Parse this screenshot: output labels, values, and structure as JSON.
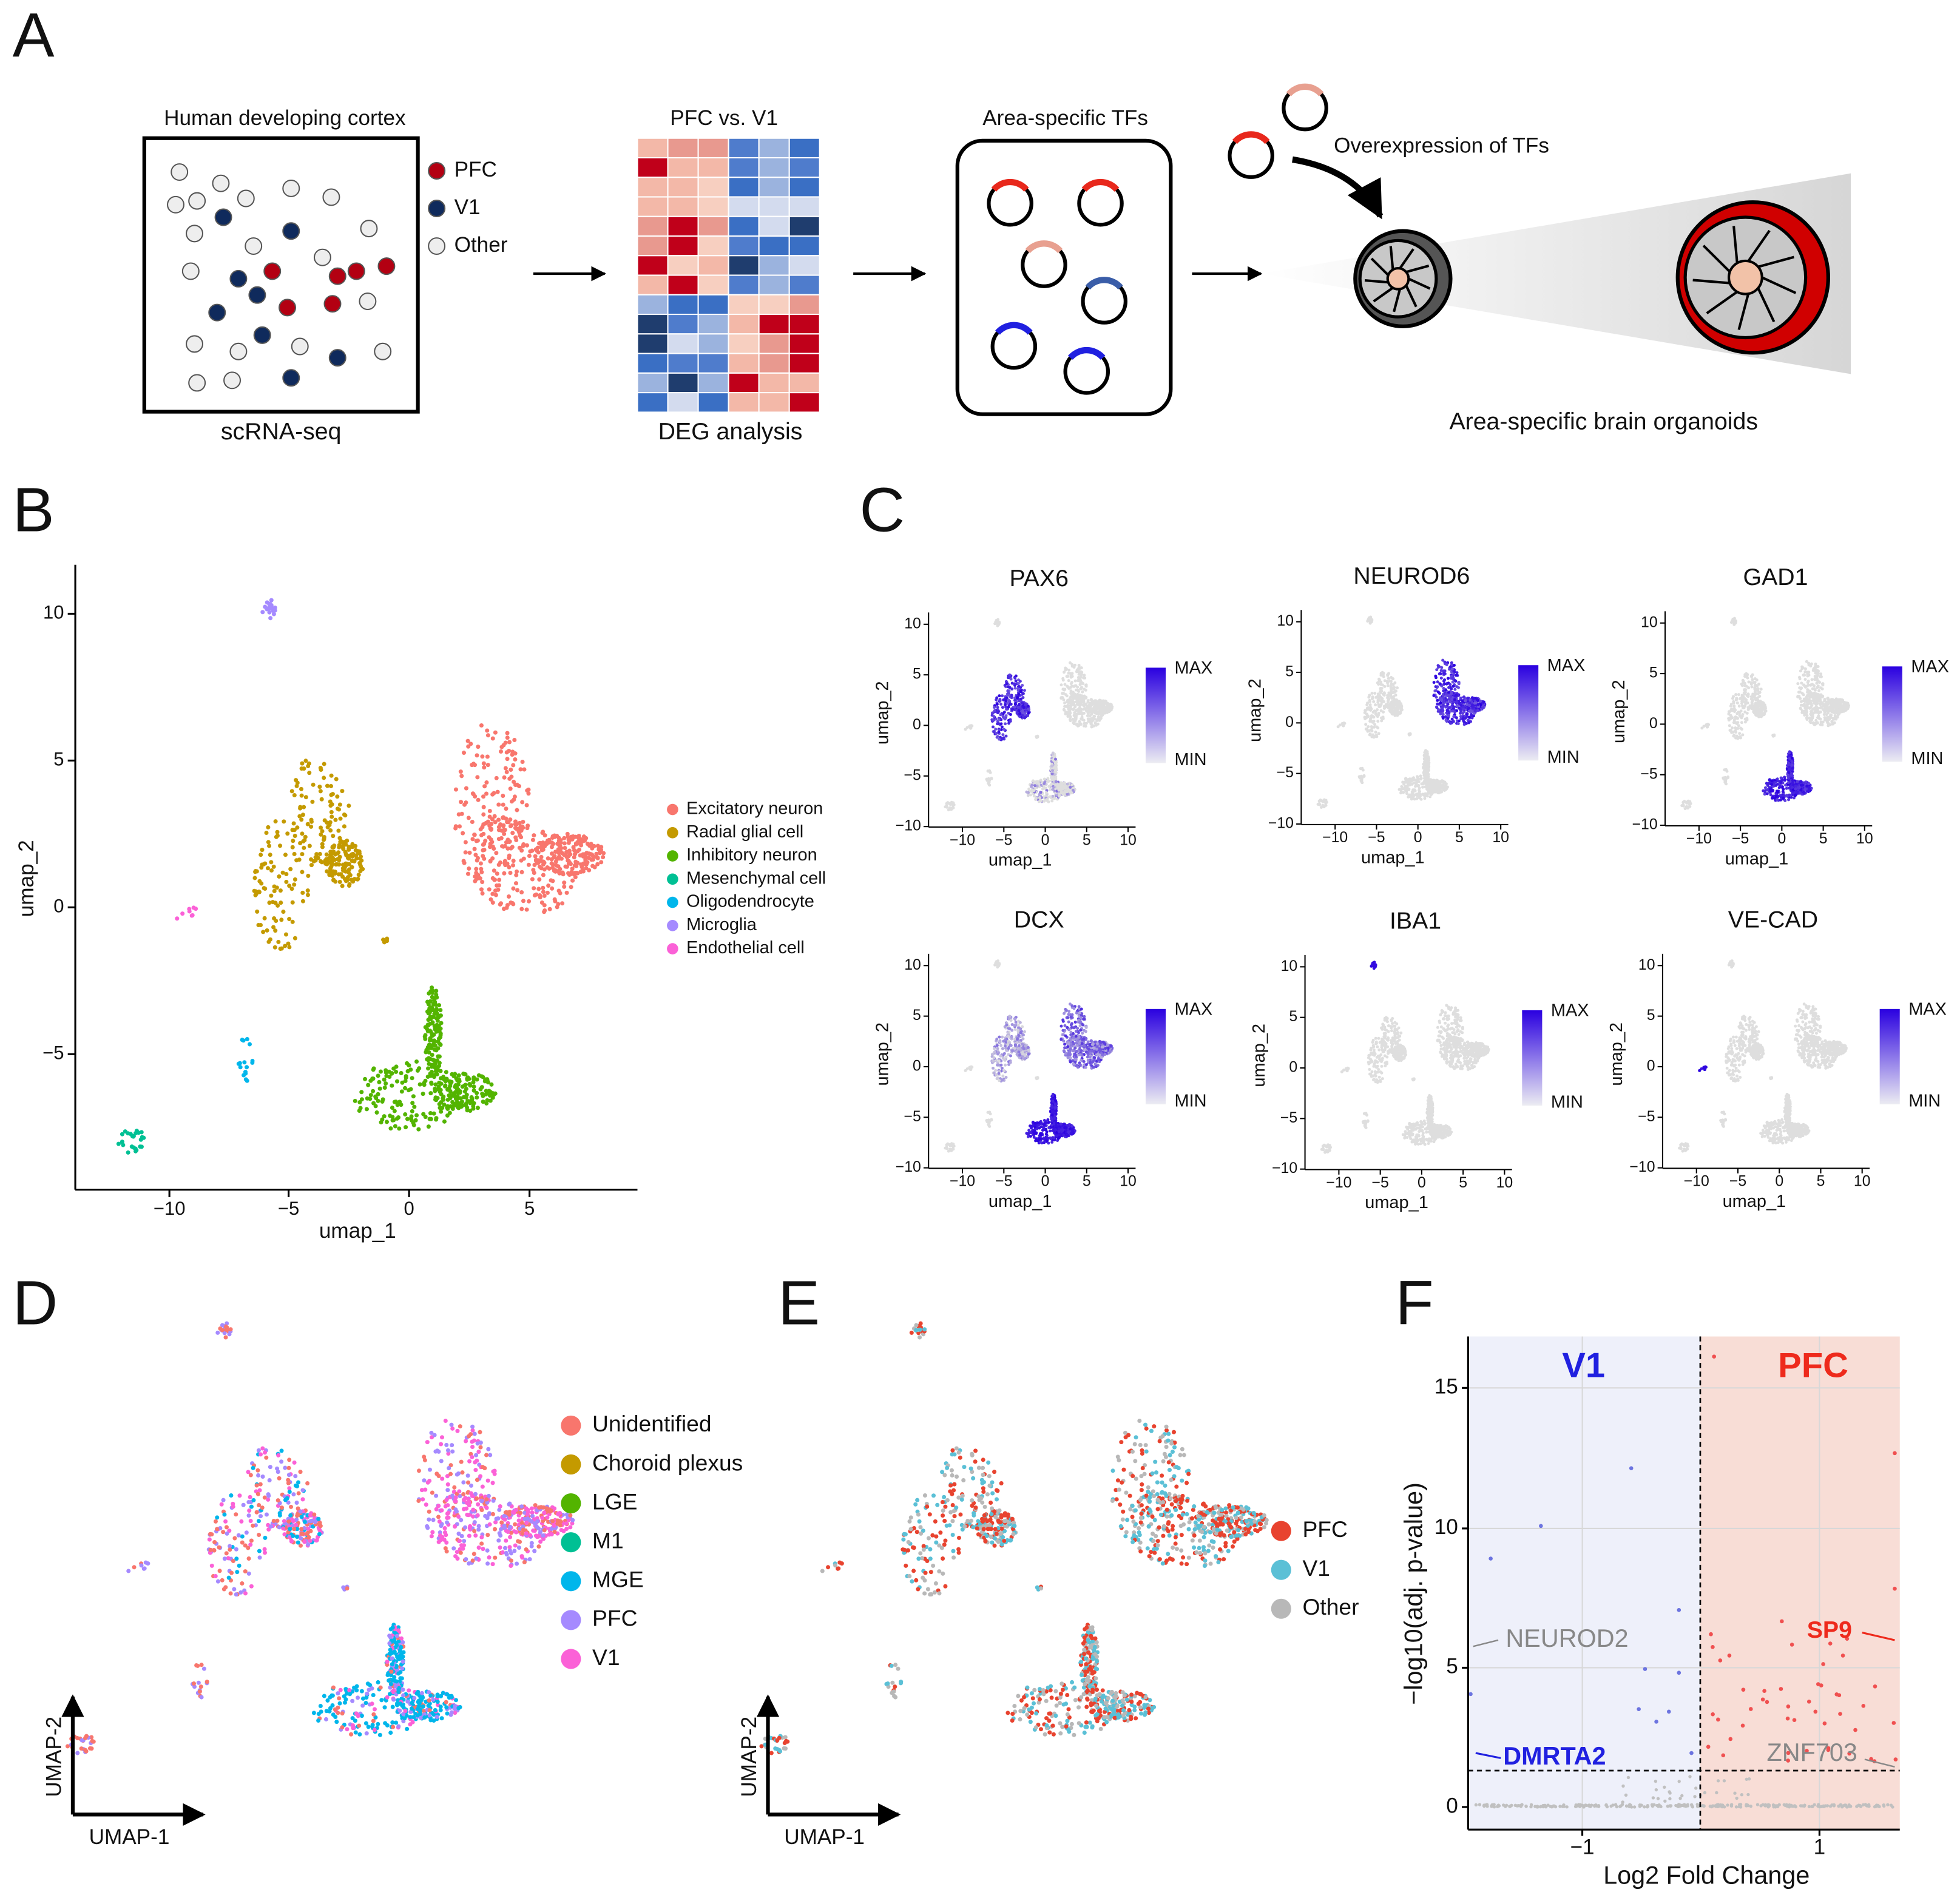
{
  "panels": {
    "A": {
      "letter": "A",
      "cortex_title": "Human developing cortex",
      "cortex_caption": "scRNA-seq",
      "legend": [
        "PFC",
        "V1",
        "Other"
      ],
      "heatmap_title": "PFC vs. V1",
      "heatmap_caption": "DEG analysis",
      "tfs_title": "Area-specific TFs",
      "overexpression": "Overexpression of TFs",
      "organoid_caption": "Area-specific brain organoids"
    },
    "B": {
      "letter": "B",
      "xlabel": "umap_1",
      "ylabel": "umap_2",
      "xticks": [
        "−10",
        "−5",
        "0",
        "5"
      ],
      "yticks": [
        "10",
        "5",
        "0",
        "−5"
      ],
      "legend": [
        "Excitatory neuron",
        "Radial glial cell",
        "Inhibitory neuron",
        "Mesenchymal cell",
        "Oligodendrocyte",
        "Microglia",
        "Endothelial cell"
      ]
    },
    "C": {
      "letter": "C",
      "genes": [
        "PAX6",
        "NEUROD6",
        "GAD1",
        "DCX",
        "IBA1",
        "VE-CAD"
      ],
      "xlabel": "umap_1",
      "ylabel": "umap_2",
      "xticks": [
        "−10",
        "−5",
        "0",
        "5",
        "10"
      ],
      "yticks": [
        "10",
        "5",
        "0",
        "−5",
        "−10"
      ],
      "max": "MAX",
      "min": "MIN"
    },
    "D": {
      "letter": "D",
      "legend": [
        "Unidentified",
        "Choroid plexus",
        "LGE",
        "M1",
        "MGE",
        "PFC",
        "V1"
      ],
      "axis_x": "UMAP-1",
      "axis_y": "UMAP-2"
    },
    "E": {
      "letter": "E",
      "legend": [
        "PFC",
        "V1",
        "Other"
      ],
      "axis_x": "UMAP-1",
      "axis_y": "UMAP-2"
    },
    "F": {
      "letter": "F",
      "xlabel": "Log2 Fold Change",
      "ylabel": "−log10(adj. p-value)",
      "xticks": [
        "−1",
        "1"
      ],
      "yticks": [
        "0",
        "5",
        "10",
        "15"
      ],
      "left_label": "V1",
      "right_label": "PFC",
      "genes": [
        "NEUROD2",
        "DMRTA2",
        "SP9",
        "ZNF703"
      ]
    }
  }
}
